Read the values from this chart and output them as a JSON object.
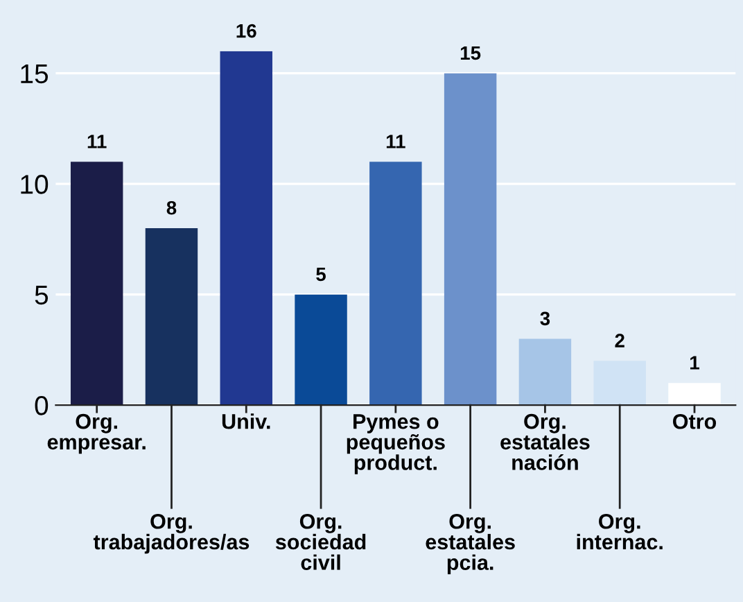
{
  "chart_data": {
    "type": "bar",
    "categories": [
      "Org.\nempresar.",
      "Org.\ntrabajadores/as",
      "Univ.",
      "Org.\nsociedad\ncivil",
      "Pymes o\npequeños\nproduct.",
      "Org.\nestatales\npcia.",
      "Org.\nestatales\nnación",
      "Org.\ninternac.",
      "Otro"
    ],
    "values": [
      11,
      8,
      16,
      5,
      11,
      15,
      3,
      2,
      1
    ],
    "colors": [
      "#1b1d48",
      "#17315f",
      "#213891",
      "#0a4a97",
      "#3566b0",
      "#6c91cb",
      "#a6c5e7",
      "#d0e3f5",
      "#ffffff"
    ],
    "ylim": [
      0,
      16
    ],
    "yticks": [
      0,
      5,
      10,
      15
    ],
    "grid": "y",
    "data_labels": true
  }
}
